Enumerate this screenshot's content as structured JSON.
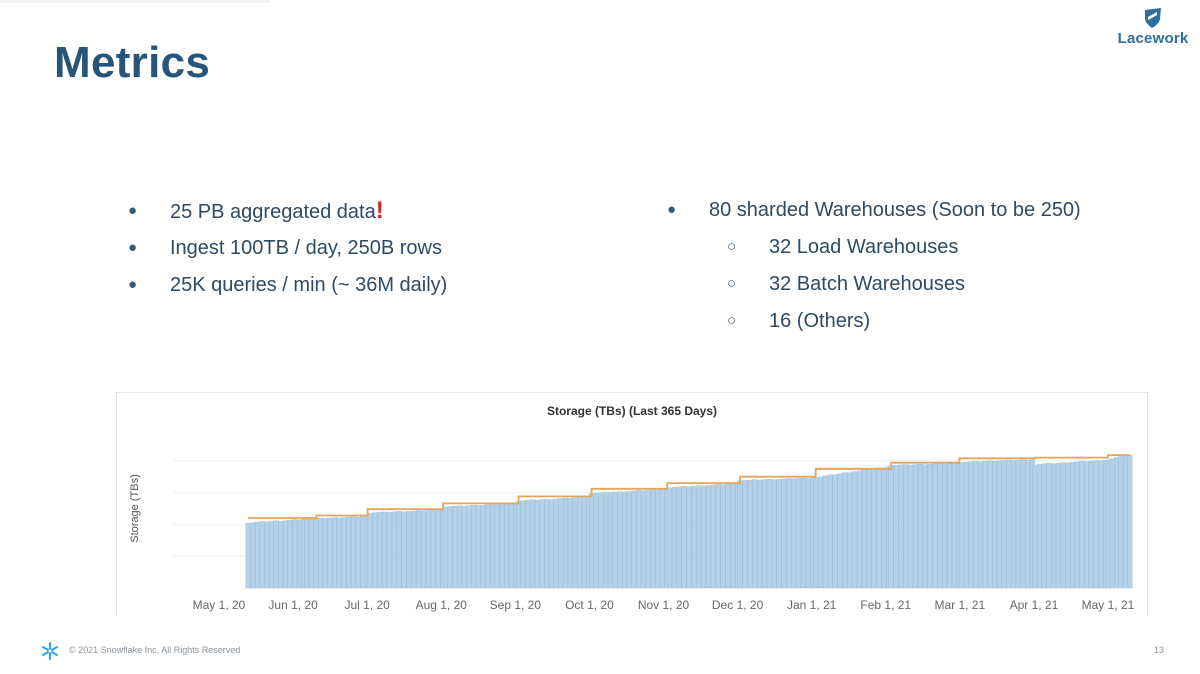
{
  "slide": {
    "title": "Metrics",
    "page_number": "13",
    "footer": "© 2021 Snowflake Inc. All Rights Reserved",
    "logo_text": "Lacework"
  },
  "bullets_left": [
    {
      "text": "25 PB aggregated data",
      "emphasis": "!"
    },
    {
      "text": "Ingest 100TB / day, 250B rows"
    },
    {
      "text": "25K queries / min (~ 36M daily)"
    }
  ],
  "bullets_right": {
    "main": "80 sharded Warehouses (Soon to be 250)",
    "sub": [
      "32 Load Warehouses",
      "32 Batch Warehouses",
      "16 (Others)"
    ]
  },
  "colors": {
    "title": "#27557a",
    "bar_fill": "#b4d1e8",
    "bar_edge": "#8cb6d6",
    "line": "#e8a35a",
    "accent_red": "#d92525",
    "logo": "#2e6e9c"
  },
  "chart_data": {
    "type": "bar",
    "title": "Storage (TBs) (Last 365 Days)",
    "ylabel": "Storage (TBs)",
    "xlabel": "",
    "x_tick_labels": [
      "May 1, 20",
      "Jun 1, 20",
      "Jul 1, 20",
      "Aug 1, 20",
      "Sep 1, 20",
      "Oct 1, 20",
      "Nov 1, 20",
      "Dec 1, 20",
      "Jan 1, 21",
      "Feb 1, 21",
      "Mar 1, 21",
      "Apr 1, 21",
      "May 1, 21"
    ],
    "y_tick_labels_visible": false,
    "ylim": [
      0,
      5
    ],
    "grid": true,
    "legend": "none",
    "series": [
      {
        "kind": "bars",
        "color": "#b4d1e8",
        "segments": [
          {
            "from": "2020-05-13",
            "to": "2020-06-05",
            "start": 2.05,
            "end": 2.16
          },
          {
            "from": "2020-06-06",
            "to": "2020-07-01",
            "start": 2.17,
            "end": 2.25
          },
          {
            "from": "2020-07-02",
            "to": "2020-08-01",
            "start": 2.36,
            "end": 2.46
          },
          {
            "from": "2020-08-02",
            "to": "2020-08-31",
            "start": 2.56,
            "end": 2.65
          },
          {
            "from": "2020-09-01",
            "to": "2020-09-30",
            "start": 2.74,
            "end": 2.86
          },
          {
            "from": "2020-10-01",
            "to": "2020-11-01",
            "start": 2.98,
            "end": 3.1
          },
          {
            "from": "2020-11-02",
            "to": "2020-11-30",
            "start": 3.16,
            "end": 3.28
          },
          {
            "from": "2020-12-01",
            "to": "2020-12-31",
            "start": 3.38,
            "end": 3.46
          },
          {
            "from": "2021-01-01",
            "to": "2021-01-31",
            "start": 3.48,
            "end": 3.82
          },
          {
            "from": "2021-02-01",
            "to": "2021-03-01",
            "start": 3.86,
            "end": 3.92
          },
          {
            "from": "2021-03-02",
            "to": "2021-03-31",
            "start": 3.96,
            "end": 4.04
          },
          {
            "from": "2021-04-01",
            "to": "2021-04-30",
            "start": 3.88,
            "end": 4.02
          },
          {
            "from": "2021-05-01",
            "to": "2021-05-10",
            "start": 4.04,
            "end": 4.18
          }
        ]
      },
      {
        "kind": "step-line",
        "color": "#e8a35a",
        "steps": [
          {
            "from": "2020-05-13",
            "value": 2.2
          },
          {
            "from": "2020-06-10",
            "value": 2.28
          },
          {
            "from": "2020-07-01",
            "value": 2.48
          },
          {
            "from": "2020-08-01",
            "value": 2.66
          },
          {
            "from": "2020-09-01",
            "value": 2.88
          },
          {
            "from": "2020-10-01",
            "value": 3.12
          },
          {
            "from": "2020-11-01",
            "value": 3.3
          },
          {
            "from": "2020-12-01",
            "value": 3.5
          },
          {
            "from": "2021-01-01",
            "value": 3.75
          },
          {
            "from": "2021-02-01",
            "value": 3.94
          },
          {
            "from": "2021-03-01",
            "value": 4.08
          },
          {
            "from": "2021-04-01",
            "value": 4.1
          },
          {
            "from": "2021-05-01",
            "value": 4.18
          }
        ],
        "end": "2021-05-10"
      }
    ]
  }
}
